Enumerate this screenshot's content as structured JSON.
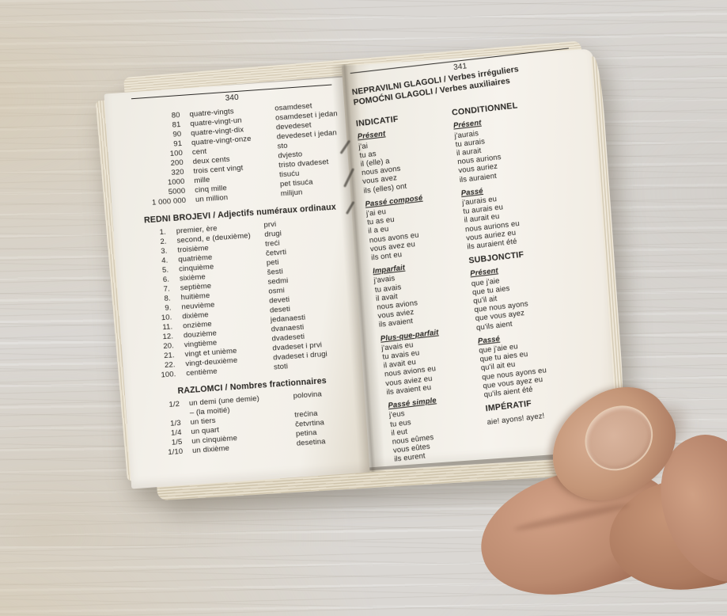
{
  "colors": {
    "table_wood": "#dad7d3",
    "page_paper": "#f5f2ec",
    "ink": "#262421",
    "skin": "#bb8a6f"
  },
  "left_page": {
    "page_number": "340",
    "cardinal_rows": [
      {
        "num": "80",
        "fr": "quatre-vingts",
        "hr": "osamdeset"
      },
      {
        "num": "81",
        "fr": "quatre-vingt-un",
        "hr": "osamdeset i jedan"
      },
      {
        "num": "90",
        "fr": "quatre-vingt-dix",
        "hr": "devedeset"
      },
      {
        "num": "91",
        "fr": "quatre-vingt-onze",
        "hr": "devedeset i jedan"
      },
      {
        "num": "100",
        "fr": "cent",
        "hr": "sto"
      },
      {
        "num": "200",
        "fr": "deux cents",
        "hr": "dvjesto"
      },
      {
        "num": "320",
        "fr": "trois cent vingt",
        "hr": "tristo dvadeset"
      },
      {
        "num": "1000",
        "fr": "mille",
        "hr": "tisuću"
      },
      {
        "num": "5000",
        "fr": "cinq mille",
        "hr": "pet tisuća"
      },
      {
        "num": "1 000 000",
        "fr": "un million",
        "hr": "milijun"
      }
    ],
    "ordinals_heading": "REDNI BROJEVI / Adjectifs numéraux ordinaux",
    "ordinal_rows": [
      {
        "num": "1.",
        "fr": "premier, ère",
        "hr": "prvi"
      },
      {
        "num": "2.",
        "fr": "second, e (deuxième)",
        "hr": "drugi"
      },
      {
        "num": "3.",
        "fr": "troisième",
        "hr": "treći"
      },
      {
        "num": "4.",
        "fr": "quatrième",
        "hr": "četvrti"
      },
      {
        "num": "5.",
        "fr": "cinquième",
        "hr": "peti"
      },
      {
        "num": "6.",
        "fr": "sixième",
        "hr": "šesti"
      },
      {
        "num": "7.",
        "fr": "septième",
        "hr": "sedmi"
      },
      {
        "num": "8.",
        "fr": "huitième",
        "hr": "osmi"
      },
      {
        "num": "9.",
        "fr": "neuvième",
        "hr": "deveti"
      },
      {
        "num": "10.",
        "fr": "dixième",
        "hr": "deseti"
      },
      {
        "num": "11.",
        "fr": "onzième",
        "hr": "jedanaesti"
      },
      {
        "num": "12.",
        "fr": "douzième",
        "hr": "dvanaesti"
      },
      {
        "num": "20.",
        "fr": "vingtième",
        "hr": "dvadeseti"
      },
      {
        "num": "21.",
        "fr": "vingt et unième",
        "hr": "dvadeset i prvi"
      },
      {
        "num": "22.",
        "fr": "vingt-deuxième",
        "hr": "dvadeset i drugi"
      },
      {
        "num": "100.",
        "fr": "centième",
        "hr": "stoti"
      }
    ],
    "fractions_heading": "RAZLOMCI / Nombres fractionnaires",
    "fraction_rows": [
      {
        "num": "1/2",
        "fr": "un demi (une demie)\n– (la moitié)",
        "hr": "polovina"
      },
      {
        "num": "1/3",
        "fr": "un tiers",
        "hr": "trećina"
      },
      {
        "num": "1/4",
        "fr": "un quart",
        "hr": "četvrtina"
      },
      {
        "num": "1/5",
        "fr": "un cinquième",
        "hr": "petina"
      },
      {
        "num": "1/10",
        "fr": "un dixième",
        "hr": "desetina"
      }
    ]
  },
  "right_page": {
    "page_number": "341",
    "title_line1": "NEPRAVILNI GLAGOLI / Verbes irréguliers",
    "title_line2": "POMOĆNI GLAGOLI / Verbes auxiliaires",
    "left_column_blocks": [
      {
        "type": "mood",
        "label": "INDICATIF"
      },
      {
        "type": "tense",
        "label": "Présent",
        "forms": [
          "j'ai",
          "tu as",
          "il (elle) a",
          "nous avons",
          "vous avez",
          "ils (elles) ont"
        ]
      },
      {
        "type": "tense",
        "label": "Passé composé",
        "forms": [
          "j'ai eu",
          "tu as eu",
          "il a eu",
          "nous avons eu",
          "vous avez eu",
          "ils ont eu"
        ]
      },
      {
        "type": "tense",
        "label": "Imparfait",
        "forms": [
          "j'avais",
          "tu avais",
          "il avait",
          "nous avions",
          "vous aviez",
          "ils avaient"
        ]
      },
      {
        "type": "tense",
        "label": "Plus-que-parfait",
        "forms": [
          "j'avais eu",
          "tu avais eu",
          "il avait eu",
          "nous avions eu",
          "vous aviez eu",
          "ils avaient eu"
        ]
      },
      {
        "type": "tense",
        "label": "Passé simple",
        "forms": [
          "j'eus",
          "tu eus",
          "il eut",
          "nous eûmes",
          "vous eûtes",
          "ils eurent"
        ]
      }
    ],
    "right_column_blocks": [
      {
        "type": "mood",
        "label": "CONDITIONNEL"
      },
      {
        "type": "tense",
        "label": "Présent",
        "forms": [
          "j'aurais",
          "tu aurais",
          "il aurait",
          "nous aurions",
          "vous auriez",
          "ils auraient"
        ]
      },
      {
        "type": "tense",
        "label": "Passé",
        "forms": [
          "j'aurais eu",
          "tu aurais eu",
          "il aurait eu",
          "nous aurions eu",
          "vous auriez eu",
          "ils auraient été"
        ]
      },
      {
        "type": "mood",
        "label": "SUBJONCTIF"
      },
      {
        "type": "tense",
        "label": "Présent",
        "forms": [
          "que j'aie",
          "que tu aies",
          "qu'il ait",
          "que nous ayons",
          "que vous ayez",
          "qu'ils aient"
        ]
      },
      {
        "type": "tense",
        "label": "Passé",
        "forms": [
          "que j'aie eu",
          "que tu aies eu",
          "qu'il ait eu",
          "que nous ayons eu",
          "que vous ayez eu",
          "qu'ils aient été"
        ]
      },
      {
        "type": "mood",
        "label": "IMPÉRATIF"
      },
      {
        "type": "inline",
        "forms": [
          "aie! ayons! ayez!"
        ]
      }
    ]
  }
}
